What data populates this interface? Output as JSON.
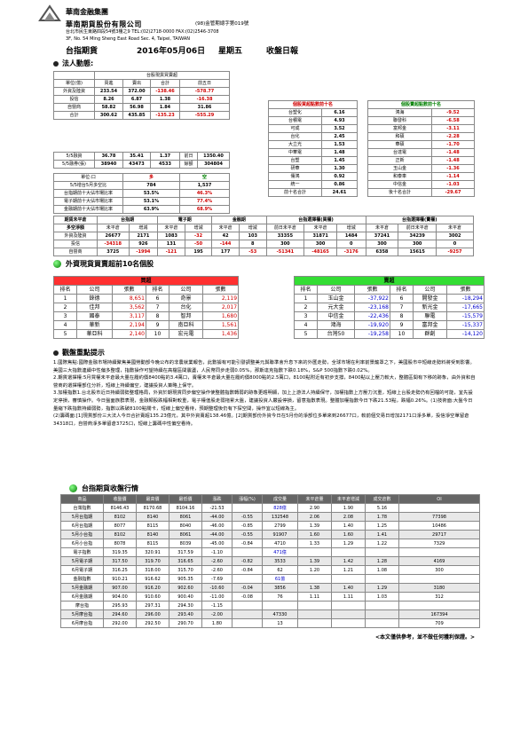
{
  "company": {
    "group": "華南金融集團",
    "name": "華南期貨股份有限公司",
    "license": "(98)金管期總字第019號",
    "address": "台北市民生東路四段54號3樓之9  TEL:(02)2718-0000  FAX:(02)2546-3708",
    "address_en": "3F, No. 54 Ming Sheng East Road Sec. 4, Taipei, TAIWAN"
  },
  "report": {
    "product": "台指期貨",
    "date": "2016年05月06日",
    "weekday": "星期五",
    "title": "收盤日報"
  },
  "section1": {
    "label": "法人動態:"
  },
  "spot": {
    "title": "台股現貨買賣超",
    "headers": [
      "單位(億)",
      "買進",
      "賣出",
      "合計",
      "前五日"
    ],
    "rows": [
      [
        "外資及陸資",
        "233.54",
        "372.00",
        "-138.46",
        "-578.77"
      ],
      [
        "投信",
        "8.26",
        "6.87",
        "1.38",
        "-16.38"
      ],
      [
        "自營商",
        "58.82",
        "56.98",
        "1.84",
        "31.86"
      ],
      [
        "合計",
        "300.62",
        "435.85",
        "-135.23",
        "-555.29"
      ]
    ],
    "margin_rows": [
      [
        "5/5融資",
        "36.78",
        "35.41",
        "1.37",
        "前日",
        "1350.40"
      ],
      [
        "5/5融券(張)",
        "38940",
        "43473",
        "4533",
        "餘額",
        "304804"
      ]
    ],
    "ls_header": [
      "單位:口",
      "多",
      "空"
    ],
    "ls_rows": [
      [
        "5/5增台5月多空比",
        "784",
        "1,537"
      ],
      [
        "台指期前十大佔市場比率",
        "53.5%",
        "46.3%"
      ],
      [
        "電子期前十大佔市場比率",
        "53.1%",
        "77.4%"
      ],
      [
        "金融期前十大佔市場比率",
        "63.9%",
        "68.9%"
      ]
    ]
  },
  "buy_top": {
    "title": "個股買超點數前十名",
    "rows": [
      [
        "台塑化",
        "6.16"
      ],
      [
        "台積電",
        "4.93"
      ],
      [
        "可成",
        "3.52"
      ],
      [
        "台化",
        "2.45"
      ],
      [
        "大立光",
        "1.53"
      ],
      [
        "中華電",
        "1.48"
      ],
      [
        "台塑",
        "1.45"
      ],
      [
        "研華",
        "1.30"
      ],
      [
        "儒鴻",
        "0.92"
      ],
      [
        "統一",
        "0.86"
      ]
    ],
    "footer_l": "前十名合計",
    "footer_v": "24.61"
  },
  "sell_top": {
    "title": "個股賣超點數前十名",
    "rows": [
      [
        "鴻海",
        "-9.52"
      ],
      [
        "聯發科",
        "-6.58"
      ],
      [
        "富邦金",
        "-3.11"
      ],
      [
        "和碩",
        "-2.28"
      ],
      [
        "華碩",
        "-1.70"
      ],
      [
        "台達電",
        "-1.48"
      ],
      [
        "正新",
        "-1.48"
      ],
      [
        "玉山金",
        "-1.36"
      ],
      [
        "和泰車",
        "-1.14"
      ],
      [
        "中信金",
        "-1.03"
      ]
    ],
    "footer_l": "後十名合計",
    "footer_v": "-29.67"
  },
  "futures": {
    "groups": [
      "期貨未平倉",
      "台指期",
      "電子期",
      "金融期",
      "台指選擇權(買權)",
      "台指選擇權(賣權)"
    ],
    "sub": [
      "多空淨額",
      "未平倉",
      "增減",
      "未平倉",
      "增減",
      "未平倉",
      "增減",
      "前日未平倉",
      "未平倉",
      "增減",
      "未平倉",
      "前日未平倉",
      "未平倉"
    ],
    "rows": [
      [
        "外資及陸資",
        "26677",
        "2171",
        "1083",
        "-32",
        "42",
        "103",
        "33355",
        "31871",
        "1484",
        "37241",
        "34239",
        "3002"
      ],
      [
        "投信",
        "-34318",
        "926",
        "131",
        "-50",
        "-144",
        "8",
        "300",
        "300",
        "0",
        "300",
        "300",
        "0"
      ],
      [
        "自營商",
        "3725",
        "-1994",
        "-121",
        "195",
        "177",
        "-53",
        "-51341",
        "-48165",
        "-3176",
        "6358",
        "15615",
        "-9257"
      ]
    ]
  },
  "section2": {
    "label": "外資現貨買賣超前10名個股"
  },
  "stock_buy": {
    "title": "買超",
    "headers": [
      "排名",
      "公司",
      "張數",
      "排名",
      "公司",
      "張數"
    ],
    "rows": [
      [
        "1",
        "錸德",
        "8,651",
        "6",
        "奇景",
        "2,119"
      ],
      [
        "2",
        "佳邦",
        "3,562",
        "7",
        "台化",
        "2,017"
      ],
      [
        "3",
        "國泰",
        "3,117",
        "8",
        "智邦",
        "1,680"
      ],
      [
        "4",
        "華新",
        "2,194",
        "9",
        "南亞科",
        "1,561"
      ],
      [
        "5",
        "華亞科",
        "2,140",
        "10",
        "宏元電",
        "1,436"
      ]
    ]
  },
  "stock_sell": {
    "title": "賣超",
    "headers": [
      "排名",
      "公司",
      "張數",
      "排名",
      "公司",
      "張數"
    ],
    "rows": [
      [
        "1",
        "玉山金",
        "-37,922",
        "6",
        "開發金",
        "-18,294"
      ],
      [
        "2",
        "元大金",
        "-23,168",
        "7",
        "新光金",
        "-17,665"
      ],
      [
        "3",
        "中信金",
        "-22,436",
        "8",
        "聯電",
        "-15,579"
      ],
      [
        "4",
        "鴻海",
        "-19,920",
        "9",
        "富邦金",
        "-15,337"
      ],
      [
        "5",
        "台灣50",
        "-19,258",
        "10",
        "群創",
        "-14,120"
      ]
    ]
  },
  "section3": {
    "label": "觀盤重點提示"
  },
  "notes": [
    "1.國際焦點:國際金融市場持續聚焦美國勞動部今晚公布的非農就業報告，此數據有可能引發調整美元與聯準會升息下來的外匯走勢，全球市場在利率前景籠罩之下，美國股市中短線走勢料將受到影響。美國三大指數連續中性偏多整理，指數操作可望持續在高檔區間震盪，人民幣同步走弱0.05%，那斯達克指數下跌0.18%，S&P 500指數下跌0.02%。",
    "2.期貨選擇權:5月買權未平倉最大量在履約價8400點的3.4萬口，賣權未平倉最大量在履約價8000點的2.5萬口，8100點附近有初步支撐，8400點以上壓力較大，整體區間有下移的跡象，由外資和自營商的選擇權部位分析，短線上持續偏空，建議投資人策略上保守。",
    "3.加權指數1.台北股市近日持續弱勢整理格局，外資於期現貨同步偏空操作使整體指數轉弱的跡象更趨明顯，加上上游法人持續保守，加權指數上方壓力沉重，短線上台股走勢仍有回檔的可能，宜先設定停損，審慎操作。今日盤面族群表現，金融類股跌幅相對較重，電子權值股走弱拖累大盤，建議投資人嚴設停損，留意指數表現。整體加權指數今日下跌21.53點，跌幅0.26%。(1)技術面:大盤今日量縮下跌指數持續弱勢，指數以跌破8100點關卡，短線上偏空看待，預期整理後仍有下探空間，操作宜以短線為主。",
    "(2)籌碼面:[1]現貨部份三大法人今日合計賣超135.23億元，其中外資賣超138.46億。[2]期貨部份外資今日在5月份的淨部位多單來到26677口，較前個交易日增加2171口淨多單，投信淨空單留倉34318口，自營商淨多單留倉3725口，短線上籌碼中性偏空看待。"
  ],
  "section4": {
    "label": "台指期貨收盤行情"
  },
  "market": {
    "headers": [
      "商品",
      "收盤價",
      "最高價",
      "最低價",
      "漲跌",
      "漲幅(%)",
      "成交量",
      "未平倉量",
      "未平倉增減",
      "成交倉數",
      "OI"
    ],
    "rows": [
      [
        "台灣指數",
        "8146.43",
        "8170.68",
        "8104.16",
        "-21.53",
        "",
        "828億",
        "2.90",
        "1.90",
        "5.16",
        ""
      ],
      [
        "5月台指期",
        "8102",
        "8140",
        "8061",
        "-44.00",
        "-0.55",
        "132548",
        "2.06",
        "2.08",
        "1.78",
        "77398"
      ],
      [
        "6月台指期",
        "8077",
        "8115",
        "8040",
        "-46.00",
        "-0.85",
        "2799",
        "1.39",
        "1.40",
        "1.25",
        "10486"
      ],
      [
        "5月小台指",
        "8102",
        "8140",
        "8061",
        "-44.00",
        "-0.55",
        "91907",
        "1.60",
        "1.60",
        "1.41",
        "29717"
      ],
      [
        "6月小台指",
        "8078",
        "8115",
        "8039",
        "-45.00",
        "-0.84",
        "4710",
        "1.33",
        "1.29",
        "1.22",
        "7329"
      ],
      [
        "電子指數",
        "319.35",
        "320.91",
        "317.59",
        "-1.10",
        "",
        "471億",
        "",
        "",
        "",
        ""
      ],
      [
        "5月電子期",
        "317.50",
        "319.70",
        "316.65",
        "-2.60",
        "-0.82",
        "3533",
        "1.39",
        "1.42",
        "1.28",
        "4169"
      ],
      [
        "6月電子期",
        "316.25",
        "318.00",
        "315.70",
        "-2.60",
        "-0.84",
        "62",
        "1.20",
        "1.21",
        "1.08",
        "300"
      ],
      [
        "金融指數",
        "910.21",
        "916.62",
        "905.35",
        "-7.69",
        "",
        "61億",
        "",
        "",
        "",
        ""
      ],
      [
        "5月金融期",
        "907.00",
        "916.20",
        "902.60",
        "-10.60",
        "-0.04",
        "3856",
        "1.38",
        "1.40",
        "1.29",
        "3180"
      ],
      [
        "6月金融期",
        "904.00",
        "910.60",
        "900.40",
        "-11.00",
        "-0.08",
        "76",
        "1.11",
        "1.11",
        "1.03",
        "312"
      ],
      [
        "摩台指",
        "295.93",
        "297.31",
        "294.30",
        "-1.15",
        "",
        "",
        "",
        "",
        "",
        ""
      ],
      [
        "5月摩台指",
        "294.60",
        "296.00",
        "293.40",
        "-2.00",
        "",
        "47330",
        "",
        "",
        "",
        "167394"
      ],
      [
        "6月摩台指",
        "292.00",
        "292.50",
        "290.70",
        "1.80",
        "",
        "13",
        "",
        "",
        "",
        "709"
      ]
    ]
  },
  "footer": {
    "disclaimer": "<本文僅供參考，並不做任何獲利保證。>"
  }
}
